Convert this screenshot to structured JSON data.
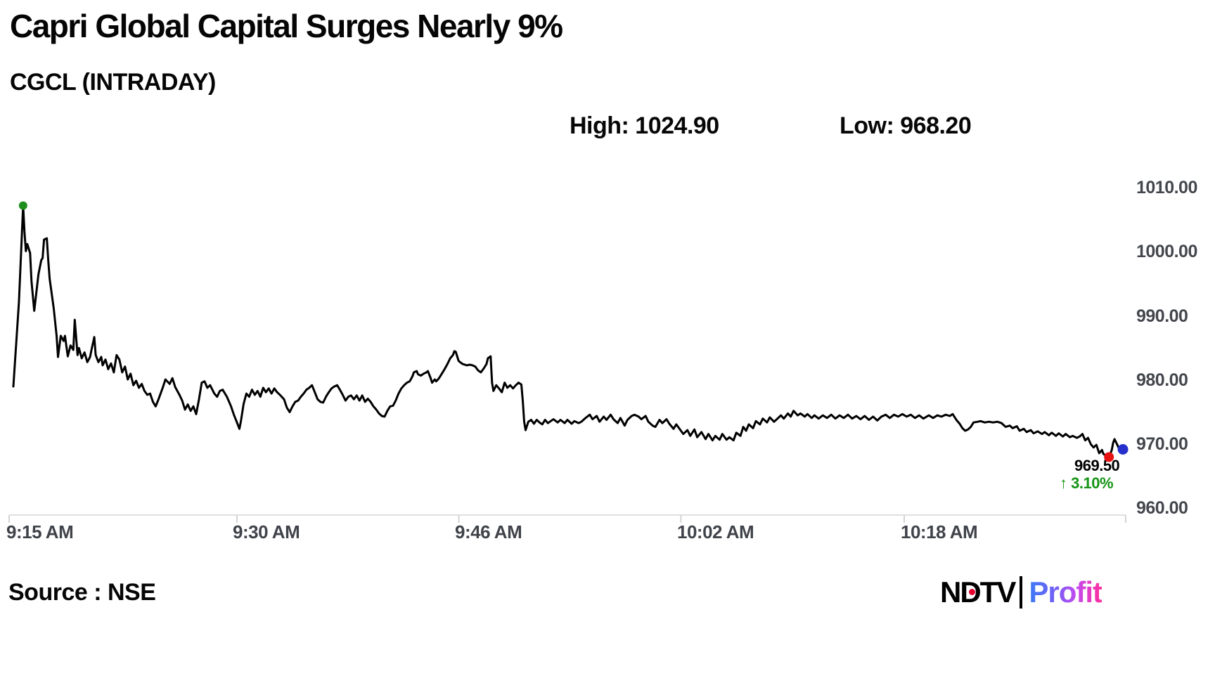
{
  "header": {
    "title": "Capri Global Capital Surges Nearly 9%",
    "ticker": "CGCL (INTRADAY)",
    "high_text": "High: 1024.90",
    "low_text": "Low: 968.20"
  },
  "annotations": {
    "last_price": "969.50",
    "change_arrow": "↑",
    "change_text": "3.10%",
    "change_color": "#149414"
  },
  "footer": {
    "source_text": "Source : NSE",
    "logo_ndtv": "NDTV",
    "logo_profit": "Profit"
  },
  "colors": {
    "line": "#000000",
    "open_marker": "#1e8e1e",
    "low_marker": "#e81212",
    "last_marker": "#2530cc",
    "axis": "#e0e0e0",
    "tick": "#d4d4d4",
    "axis_text": "#43474d"
  },
  "chart_data": {
    "type": "line",
    "title": "CGCL (INTRADAY)",
    "xlabel": "",
    "ylabel": "",
    "ylim": [
      960,
      1010
    ],
    "t_max": 80,
    "grid": false,
    "legend": "none",
    "x_ticks": [
      {
        "label": "9:15 AM",
        "t": 0
      },
      {
        "label": "9:30 AM",
        "t": 16.32
      },
      {
        "label": "9:46 AM",
        "t": 32.22
      },
      {
        "label": "10:02 AM",
        "t": 48.13
      },
      {
        "label": "10:18 AM",
        "t": 64.13
      },
      {
        "label": "",
        "t": 80
      }
    ],
    "y_ticks": [
      {
        "label": "1010.00",
        "value": 1010
      },
      {
        "label": "1000.00",
        "value": 1000
      },
      {
        "label": "990.00",
        "value": 990
      },
      {
        "label": "980.00",
        "value": 980
      },
      {
        "label": "970.00",
        "value": 970
      },
      {
        "label": "960.00",
        "value": 960
      }
    ],
    "markers": [
      {
        "name": "open-marker",
        "t": 1.0,
        "price": 1007.2,
        "r": 6,
        "color": "#1e8e1e"
      },
      {
        "name": "low-marker",
        "t": 78.8,
        "price": 968.0,
        "r": 7,
        "color": "#e81212"
      },
      {
        "name": "last-marker",
        "t": 79.8,
        "price": 969.2,
        "r": 7.5,
        "color": "#2530cc"
      }
    ],
    "points": [
      [
        0.3,
        979.0
      ],
      [
        0.7,
        992.1
      ],
      [
        1.0,
        1007.2
      ],
      [
        1.1,
        1003.1
      ],
      [
        1.2,
        1000.1
      ],
      [
        1.3,
        1001.2
      ],
      [
        1.5,
        999.8
      ],
      [
        1.6,
        995.4
      ],
      [
        1.8,
        990.8
      ],
      [
        1.9,
        992.7
      ],
      [
        2.1,
        996.5
      ],
      [
        2.3,
        998.7
      ],
      [
        2.4,
        999.0
      ],
      [
        2.5,
        1001.9
      ],
      [
        2.7,
        1002.1
      ],
      [
        2.8,
        998.7
      ],
      [
        2.9,
        995.8
      ],
      [
        3.1,
        992.7
      ],
      [
        3.2,
        991.1
      ],
      [
        3.4,
        986.9
      ],
      [
        3.5,
        983.6
      ],
      [
        3.7,
        986.9
      ],
      [
        3.9,
        986.1
      ],
      [
        4.0,
        986.9
      ],
      [
        4.2,
        983.7
      ],
      [
        4.4,
        985.4
      ],
      [
        4.6,
        984.7
      ],
      [
        4.7,
        989.4
      ],
      [
        4.9,
        983.9
      ],
      [
        5.0,
        985.0
      ],
      [
        5.2,
        983.4
      ],
      [
        5.4,
        984.3
      ],
      [
        5.6,
        982.8
      ],
      [
        5.8,
        983.6
      ],
      [
        5.9,
        984.7
      ],
      [
        6.1,
        986.7
      ],
      [
        6.2,
        983.9
      ],
      [
        6.4,
        982.8
      ],
      [
        6.6,
        983.6
      ],
      [
        6.7,
        982.3
      ],
      [
        6.9,
        983.2
      ],
      [
        7.1,
        981.7
      ],
      [
        7.3,
        982.6
      ],
      [
        7.5,
        981.2
      ],
      [
        7.7,
        983.9
      ],
      [
        7.9,
        983.2
      ],
      [
        8.1,
        981.2
      ],
      [
        8.3,
        982.1
      ],
      [
        8.5,
        980.1
      ],
      [
        8.7,
        981.0
      ],
      [
        8.9,
        979.2
      ],
      [
        9.1,
        979.9
      ],
      [
        9.3,
        978.8
      ],
      [
        9.5,
        979.4
      ],
      [
        9.7,
        978.3
      ],
      [
        9.9,
        977.7
      ],
      [
        10.1,
        977.9
      ],
      [
        10.3,
        976.6
      ],
      [
        10.5,
        975.9
      ],
      [
        10.7,
        977.0
      ],
      [
        11.0,
        978.8
      ],
      [
        11.2,
        980.1
      ],
      [
        11.5,
        979.4
      ],
      [
        11.7,
        980.3
      ],
      [
        11.9,
        978.9
      ],
      [
        12.2,
        977.7
      ],
      [
        12.4,
        976.8
      ],
      [
        12.6,
        975.4
      ],
      [
        12.8,
        976.2
      ],
      [
        13.0,
        975.2
      ],
      [
        13.2,
        975.9
      ],
      [
        13.4,
        974.7
      ],
      [
        13.6,
        977.0
      ],
      [
        13.8,
        979.6
      ],
      [
        14.0,
        979.8
      ],
      [
        14.2,
        978.8
      ],
      [
        14.4,
        979.2
      ],
      [
        14.7,
        977.9
      ],
      [
        14.9,
        977.4
      ],
      [
        15.1,
        978.3
      ],
      [
        15.3,
        978.5
      ],
      [
        15.6,
        977.4
      ],
      [
        15.9,
        975.9
      ],
      [
        16.1,
        974.6
      ],
      [
        16.3,
        973.5
      ],
      [
        16.5,
        972.4
      ],
      [
        16.6,
        973.5
      ],
      [
        16.8,
        976.3
      ],
      [
        17.0,
        977.9
      ],
      [
        17.2,
        977.4
      ],
      [
        17.4,
        978.5
      ],
      [
        17.6,
        977.7
      ],
      [
        17.8,
        978.3
      ],
      [
        18.0,
        977.4
      ],
      [
        18.2,
        978.8
      ],
      [
        18.4,
        978.1
      ],
      [
        18.6,
        978.7
      ],
      [
        18.8,
        977.9
      ],
      [
        19.0,
        978.7
      ],
      [
        19.2,
        978.1
      ],
      [
        19.4,
        977.7
      ],
      [
        19.7,
        977.0
      ],
      [
        19.9,
        975.7
      ],
      [
        20.1,
        975.0
      ],
      [
        20.3,
        975.9
      ],
      [
        20.5,
        976.6
      ],
      [
        20.7,
        976.8
      ],
      [
        20.9,
        977.4
      ],
      [
        21.1,
        977.9
      ],
      [
        21.3,
        978.5
      ],
      [
        21.5,
        978.8
      ],
      [
        21.7,
        979.2
      ],
      [
        21.9,
        978.1
      ],
      [
        22.1,
        977.0
      ],
      [
        22.3,
        976.6
      ],
      [
        22.5,
        976.5
      ],
      [
        22.7,
        977.4
      ],
      [
        22.9,
        978.1
      ],
      [
        23.1,
        978.7
      ],
      [
        23.3,
        979.0
      ],
      [
        23.5,
        979.2
      ],
      [
        23.7,
        978.5
      ],
      [
        23.9,
        977.7
      ],
      [
        24.1,
        976.8
      ],
      [
        24.3,
        977.4
      ],
      [
        24.5,
        977.6
      ],
      [
        24.7,
        977.0
      ],
      [
        24.9,
        977.6
      ],
      [
        25.1,
        976.8
      ],
      [
        25.3,
        977.6
      ],
      [
        25.5,
        976.6
      ],
      [
        25.7,
        977.1
      ],
      [
        25.9,
        976.6
      ],
      [
        26.1,
        975.9
      ],
      [
        26.3,
        975.4
      ],
      [
        26.5,
        974.8
      ],
      [
        26.7,
        974.4
      ],
      [
        26.9,
        974.3
      ],
      [
        27.1,
        975.2
      ],
      [
        27.3,
        975.9
      ],
      [
        27.5,
        976.0
      ],
      [
        27.7,
        976.8
      ],
      [
        27.9,
        977.9
      ],
      [
        28.1,
        978.7
      ],
      [
        28.3,
        979.2
      ],
      [
        28.5,
        979.6
      ],
      [
        28.7,
        979.8
      ],
      [
        28.9,
        980.6
      ],
      [
        29.0,
        981.2
      ],
      [
        29.2,
        981.4
      ],
      [
        29.3,
        980.9
      ],
      [
        29.5,
        980.7
      ],
      [
        29.7,
        981.0
      ],
      [
        29.9,
        981.2
      ],
      [
        30.0,
        981.4
      ],
      [
        30.2,
        980.3
      ],
      [
        30.3,
        979.6
      ],
      [
        30.5,
        980.1
      ],
      [
        30.6,
        979.8
      ],
      [
        30.8,
        980.3
      ],
      [
        31.0,
        981.0
      ],
      [
        31.2,
        981.7
      ],
      [
        31.4,
        982.5
      ],
      [
        31.6,
        983.4
      ],
      [
        31.8,
        983.9
      ],
      [
        31.9,
        984.5
      ],
      [
        32.0,
        984.4
      ],
      [
        32.2,
        983.0
      ],
      [
        32.3,
        982.8
      ],
      [
        32.5,
        982.5
      ],
      [
        32.8,
        982.3
      ],
      [
        33.0,
        982.4
      ],
      [
        33.2,
        982.3
      ],
      [
        33.4,
        982.1
      ],
      [
        33.6,
        981.5
      ],
      [
        33.8,
        981.2
      ],
      [
        34.0,
        981.8
      ],
      [
        34.2,
        982.5
      ],
      [
        34.3,
        983.4
      ],
      [
        34.5,
        983.7
      ],
      [
        34.6,
        979.6
      ],
      [
        34.7,
        978.3
      ],
      [
        34.9,
        979.2
      ],
      [
        35.1,
        978.7
      ],
      [
        35.3,
        978.1
      ],
      [
        35.5,
        979.6
      ],
      [
        35.7,
        978.8
      ],
      [
        35.9,
        979.2
      ],
      [
        36.1,
        978.7
      ],
      [
        36.3,
        979.2
      ],
      [
        36.5,
        979.6
      ],
      [
        36.7,
        979.3
      ],
      [
        36.8,
        976.8
      ],
      [
        36.9,
        973.5
      ],
      [
        37.0,
        972.2
      ],
      [
        37.2,
        973.5
      ],
      [
        37.4,
        973.8
      ],
      [
        37.6,
        973.2
      ],
      [
        37.8,
        973.8
      ],
      [
        38.0,
        973.4
      ],
      [
        38.2,
        973.1
      ],
      [
        38.4,
        973.8
      ],
      [
        38.6,
        973.3
      ],
      [
        38.8,
        973.6
      ],
      [
        39.0,
        973.9
      ],
      [
        39.3,
        973.4
      ],
      [
        39.5,
        973.8
      ],
      [
        39.8,
        973.3
      ],
      [
        40.0,
        973.8
      ],
      [
        40.3,
        973.2
      ],
      [
        40.5,
        973.6
      ],
      [
        40.8,
        973.3
      ],
      [
        41.0,
        973.5
      ],
      [
        41.3,
        974.1
      ],
      [
        41.6,
        974.6
      ],
      [
        41.8,
        973.9
      ],
      [
        42.1,
        974.4
      ],
      [
        42.3,
        973.5
      ],
      [
        42.6,
        974.3
      ],
      [
        42.8,
        973.8
      ],
      [
        43.1,
        974.6
      ],
      [
        43.3,
        973.9
      ],
      [
        43.6,
        973.3
      ],
      [
        43.8,
        974.1
      ],
      [
        44.1,
        972.9
      ],
      [
        44.3,
        973.8
      ],
      [
        44.6,
        974.4
      ],
      [
        44.8,
        974.6
      ],
      [
        45.1,
        974.3
      ],
      [
        45.3,
        973.9
      ],
      [
        45.6,
        974.4
      ],
      [
        45.8,
        973.5
      ],
      [
        46.1,
        972.9
      ],
      [
        46.3,
        972.7
      ],
      [
        46.6,
        973.8
      ],
      [
        46.8,
        973.3
      ],
      [
        47.1,
        973.9
      ],
      [
        47.3,
        973.2
      ],
      [
        47.6,
        972.4
      ],
      [
        47.8,
        973.1
      ],
      [
        48.1,
        972.2
      ],
      [
        48.3,
        971.6
      ],
      [
        48.6,
        972.2
      ],
      [
        48.8,
        971.3
      ],
      [
        49.1,
        972.3
      ],
      [
        49.3,
        971.1
      ],
      [
        49.6,
        971.9
      ],
      [
        49.9,
        970.8
      ],
      [
        50.1,
        971.6
      ],
      [
        50.4,
        970.6
      ],
      [
        50.6,
        971.3
      ],
      [
        50.9,
        970.7
      ],
      [
        51.1,
        971.6
      ],
      [
        51.4,
        970.7
      ],
      [
        51.6,
        971.1
      ],
      [
        51.9,
        970.6
      ],
      [
        52.1,
        971.8
      ],
      [
        52.4,
        971.3
      ],
      [
        52.6,
        972.7
      ],
      [
        52.8,
        972.1
      ],
      [
        53.0,
        973.1
      ],
      [
        53.3,
        972.5
      ],
      [
        53.5,
        973.6
      ],
      [
        53.8,
        973.1
      ],
      [
        54.0,
        974.0
      ],
      [
        54.3,
        973.4
      ],
      [
        54.5,
        974.2
      ],
      [
        54.8,
        973.5
      ],
      [
        55.0,
        973.9
      ],
      [
        55.3,
        974.5
      ],
      [
        55.5,
        974.0
      ],
      [
        55.8,
        974.8
      ],
      [
        56.0,
        974.3
      ],
      [
        56.2,
        975.2
      ],
      [
        56.5,
        974.5
      ],
      [
        56.7,
        974.8
      ],
      [
        57.0,
        974.3
      ],
      [
        57.2,
        974.7
      ],
      [
        57.5,
        974.1
      ],
      [
        57.7,
        974.5
      ],
      [
        58.0,
        974.0
      ],
      [
        58.3,
        974.5
      ],
      [
        58.6,
        974.1
      ],
      [
        58.9,
        974.6
      ],
      [
        59.2,
        974.0
      ],
      [
        59.5,
        974.5
      ],
      [
        59.8,
        974.1
      ],
      [
        60.1,
        974.6
      ],
      [
        60.4,
        974.0
      ],
      [
        60.7,
        974.4
      ],
      [
        61.0,
        973.9
      ],
      [
        61.3,
        974.4
      ],
      [
        61.6,
        973.8
      ],
      [
        61.9,
        974.3
      ],
      [
        62.2,
        973.7
      ],
      [
        62.5,
        974.3
      ],
      [
        62.8,
        974.6
      ],
      [
        63.1,
        974.1
      ],
      [
        63.4,
        974.6
      ],
      [
        63.7,
        974.3
      ],
      [
        64.0,
        974.7
      ],
      [
        64.3,
        974.3
      ],
      [
        64.6,
        974.6
      ],
      [
        64.9,
        974.1
      ],
      [
        65.2,
        974.5
      ],
      [
        65.5,
        974.0
      ],
      [
        65.9,
        974.5
      ],
      [
        66.2,
        974.1
      ],
      [
        66.5,
        974.5
      ],
      [
        66.8,
        974.3
      ],
      [
        67.1,
        974.6
      ],
      [
        67.4,
        974.4
      ],
      [
        67.6,
        974.7
      ],
      [
        67.9,
        973.7
      ],
      [
        68.1,
        973.2
      ],
      [
        68.3,
        972.5
      ],
      [
        68.5,
        972.1
      ],
      [
        68.7,
        972.3
      ],
      [
        68.9,
        972.7
      ],
      [
        69.1,
        973.4
      ],
      [
        69.4,
        973.5
      ],
      [
        69.6,
        973.6
      ],
      [
        69.9,
        973.4
      ],
      [
        70.2,
        973.5
      ],
      [
        70.5,
        973.4
      ],
      [
        70.8,
        973.5
      ],
      [
        71.1,
        973.3
      ],
      [
        71.4,
        972.7
      ],
      [
        71.7,
        972.9
      ],
      [
        71.9,
        972.5
      ],
      [
        72.2,
        972.8
      ],
      [
        72.4,
        972.1
      ],
      [
        72.7,
        972.4
      ],
      [
        72.9,
        971.9
      ],
      [
        73.2,
        972.2
      ],
      [
        73.4,
        971.7
      ],
      [
        73.7,
        972.0
      ],
      [
        74.0,
        971.6
      ],
      [
        74.2,
        971.9
      ],
      [
        74.5,
        971.4
      ],
      [
        74.7,
        971.8
      ],
      [
        75.0,
        971.3
      ],
      [
        75.2,
        971.7
      ],
      [
        75.5,
        971.2
      ],
      [
        75.7,
        971.6
      ],
      [
        76.0,
        971.1
      ],
      [
        76.2,
        971.3
      ],
      [
        76.5,
        971.0
      ],
      [
        76.7,
        971.2
      ],
      [
        76.9,
        971.6
      ],
      [
        77.1,
        970.6
      ],
      [
        77.3,
        971.0
      ],
      [
        77.5,
        970.0
      ],
      [
        77.7,
        969.5
      ],
      [
        77.9,
        969.9
      ],
      [
        78.1,
        968.6
      ],
      [
        78.3,
        969.1
      ],
      [
        78.4,
        968.5
      ],
      [
        78.6,
        968.2
      ],
      [
        78.8,
        967.9
      ],
      [
        79.0,
        969.1
      ],
      [
        79.1,
        970.2
      ],
      [
        79.2,
        970.8
      ],
      [
        79.4,
        969.9
      ],
      [
        79.5,
        969.4
      ],
      [
        79.7,
        969.0
      ],
      [
        79.8,
        969.0
      ]
    ]
  }
}
